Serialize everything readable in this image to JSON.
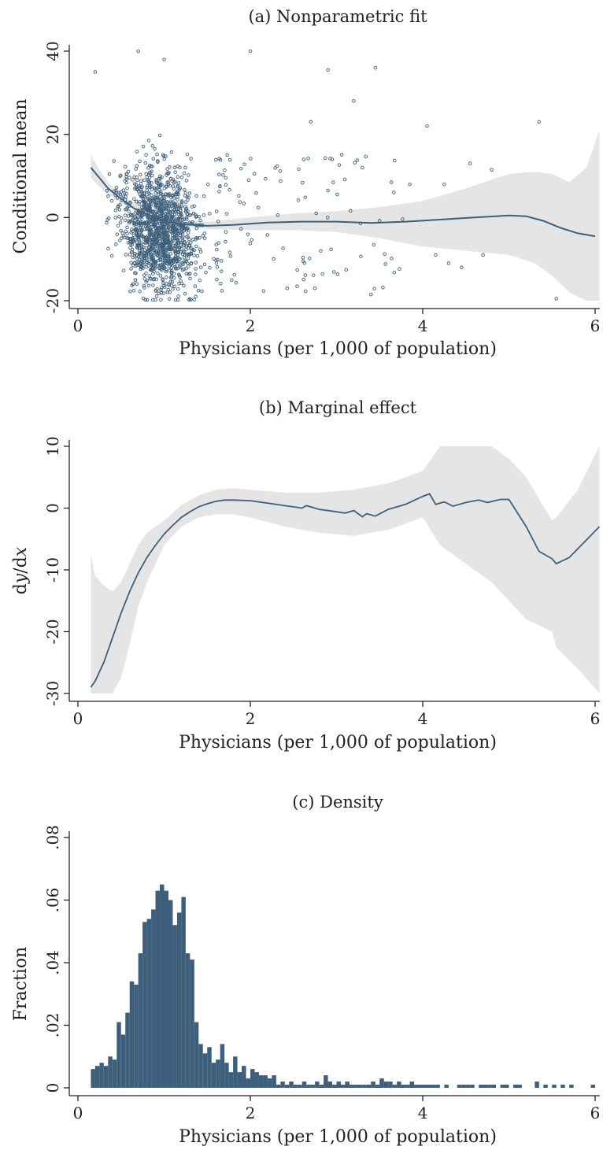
{
  "figure": {
    "panels": [
      {
        "title": "(a) Nonparametric fit",
        "ylabel": "Conditional mean",
        "xlabel": "Physicians (per 1,000 of population)"
      },
      {
        "title": "(b) Marginal effect",
        "ylabel": "dy/dx",
        "xlabel": "Physicians (per 1,000 of population)"
      },
      {
        "title": "(c) Density",
        "ylabel": "Fraction",
        "xlabel": "Physicians (per 1,000 of population)"
      }
    ]
  },
  "colors": {
    "series": "#3e5f7b",
    "band": "#e5e5e5",
    "axis": "#222222",
    "background": "#ffffff"
  },
  "chart_data": [
    {
      "type": "scatter",
      "title": "(a) Nonparametric fit",
      "xlabel": "Physicians (per 1,000 of population)",
      "ylabel": "Conditional mean",
      "xlim": [
        0,
        6
      ],
      "ylim": [
        -20,
        40
      ],
      "xticks": [
        0,
        2,
        4,
        6
      ],
      "yticks": [
        -20,
        0,
        20,
        40
      ],
      "xtick_labels": [
        "0",
        "2",
        "4",
        "6"
      ],
      "ytick_labels": [
        "-20",
        "0",
        "20",
        "40"
      ],
      "grid": false,
      "scatter_points": {
        "n": 1500,
        "note_x_range": [
          0.15,
          6.0
        ],
        "bulk_x_center": 0.95,
        "sample": [
          [
            0.2,
            35
          ],
          [
            0.7,
            40
          ],
          [
            1.0,
            38
          ],
          [
            2.0,
            40
          ],
          [
            2.9,
            35.5
          ],
          [
            3.45,
            36
          ],
          [
            3.2,
            28
          ],
          [
            4.05,
            22
          ],
          [
            5.35,
            23
          ],
          [
            2.7,
            23
          ],
          [
            4.55,
            13
          ],
          [
            4.8,
            11.5
          ],
          [
            5.55,
            -19.5
          ],
          [
            3.4,
            -18.5
          ],
          [
            2.75,
            -17
          ],
          [
            2.95,
            14
          ],
          [
            2.9,
            6.5
          ],
          [
            3.3,
            12
          ],
          [
            3.85,
            8
          ],
          [
            4.25,
            8
          ],
          [
            4.3,
            -11
          ],
          [
            4.7,
            -9
          ],
          [
            4.45,
            -12
          ],
          [
            4.15,
            -9
          ]
        ]
      },
      "fit_line": {
        "x": [
          0.15,
          0.25,
          0.35,
          0.5,
          0.65,
          0.8,
          1.0,
          1.2,
          1.5,
          1.8,
          2.2,
          2.6,
          3.0,
          3.4,
          3.8,
          4.2,
          4.6,
          5.0,
          5.2,
          5.4,
          5.6,
          5.8,
          6.0
        ],
        "y": [
          12.0,
          9.5,
          7.0,
          4.5,
          2.2,
          0.8,
          -0.8,
          -1.6,
          -2.0,
          -1.8,
          -1.2,
          -1.0,
          -1.0,
          -1.3,
          -1.0,
          -0.5,
          0.0,
          0.5,
          0.3,
          -0.8,
          -2.5,
          -3.8,
          -4.5
        ]
      },
      "confidence_band": {
        "x": [
          0.15,
          0.25,
          0.35,
          0.5,
          0.7,
          1.0,
          1.5,
          2.0,
          2.5,
          3.0,
          3.5,
          4.0,
          4.5,
          5.0,
          5.3,
          5.5,
          5.7,
          5.9,
          6.05
        ],
        "lower": [
          9.5,
          7.5,
          5.5,
          3.5,
          1.5,
          -1.5,
          -2.8,
          -3.0,
          -3.0,
          -3.5,
          -5.0,
          -7.0,
          -8.0,
          -9.0,
          -11.0,
          -14.0,
          -18.0,
          -20.0,
          -20.0
        ],
        "upper": [
          15.0,
          11.5,
          8.5,
          5.5,
          3.0,
          0.0,
          -1.0,
          0.0,
          1.0,
          1.5,
          2.5,
          4.0,
          7.0,
          10.5,
          11.0,
          10.5,
          8.5,
          12.0,
          21.0
        ]
      }
    },
    {
      "type": "line",
      "title": "(b) Marginal effect",
      "xlabel": "Physicians (per 1,000 of population)",
      "ylabel": "dy/dx",
      "xlim": [
        0,
        6
      ],
      "ylim": [
        -30,
        10
      ],
      "xticks": [
        0,
        2,
        4,
        6
      ],
      "yticks": [
        -30,
        -20,
        -10,
        0,
        10
      ],
      "xtick_labels": [
        "0",
        "2",
        "4",
        "6"
      ],
      "ytick_labels": [
        "-30",
        "-20",
        "-10",
        "0",
        "10"
      ],
      "grid": false,
      "series": [
        {
          "x": [
            0.15,
            0.2,
            0.3,
            0.4,
            0.5,
            0.6,
            0.7,
            0.8,
            0.9,
            1.0,
            1.1,
            1.2,
            1.3,
            1.4,
            1.5,
            1.6,
            1.7,
            1.8,
            2.0,
            2.2,
            2.4,
            2.6,
            2.65,
            2.8,
            3.0,
            3.1,
            3.2,
            3.3,
            3.35,
            3.45,
            3.6,
            3.8,
            4.0,
            4.08,
            4.15,
            4.25,
            4.35,
            4.5,
            4.65,
            4.75,
            4.9,
            5.0,
            5.2,
            5.35,
            5.5,
            5.55,
            5.7,
            6.05
          ],
          "y": [
            -29.0,
            -28.0,
            -25.0,
            -21.0,
            -17.0,
            -13.5,
            -10.5,
            -8.0,
            -6.0,
            -4.2,
            -2.8,
            -1.5,
            -0.6,
            0.2,
            0.7,
            1.1,
            1.3,
            1.3,
            1.2,
            0.8,
            0.4,
            0.0,
            0.4,
            -0.2,
            -0.6,
            -0.8,
            -0.4,
            -1.4,
            -0.9,
            -1.3,
            -0.2,
            0.6,
            1.9,
            2.3,
            0.6,
            1.0,
            0.3,
            0.9,
            1.3,
            0.9,
            1.4,
            1.4,
            -3.0,
            -7.0,
            -8.2,
            -9.0,
            -8.0,
            -3.0
          ]
        }
      ],
      "confidence_band": {
        "x": [
          0.15,
          0.2,
          0.3,
          0.4,
          0.5,
          0.6,
          0.7,
          0.8,
          1.0,
          1.2,
          1.4,
          1.6,
          1.8,
          2.0,
          2.4,
          2.8,
          3.2,
          3.6,
          4.0,
          4.2,
          4.4,
          4.6,
          4.8,
          5.0,
          5.2,
          5.5,
          5.55,
          5.8,
          6.05
        ],
        "lower": [
          -30.0,
          -30.0,
          -30.0,
          -30.0,
          -27.5,
          -22.0,
          -16.0,
          -12.0,
          -6.0,
          -3.0,
          -1.5,
          -1.0,
          -1.0,
          -1.5,
          -3.0,
          -4.0,
          -4.5,
          -3.5,
          -1.5,
          -6.0,
          -8.0,
          -10.0,
          -12.0,
          -15.0,
          -18.0,
          -20.0,
          -22.5,
          -26.0,
          -30.0
        ],
        "upper": [
          -7.5,
          -11.0,
          -12.5,
          -13.5,
          -12.0,
          -9.0,
          -6.0,
          -4.0,
          -2.0,
          0.5,
          2.0,
          3.0,
          3.2,
          3.0,
          2.5,
          2.5,
          3.0,
          4.0,
          6.0,
          10.0,
          10.0,
          10.0,
          10.0,
          8.0,
          5.0,
          -2.0,
          -1.5,
          3.0,
          10.0
        ]
      }
    },
    {
      "type": "bar",
      "title": "(c) Density",
      "xlabel": "Physicians (per 1,000 of population)",
      "ylabel": "Fraction",
      "xlim": [
        0,
        6
      ],
      "ylim": [
        0,
        0.08
      ],
      "xticks": [
        0,
        2,
        4,
        6
      ],
      "yticks": [
        0,
        0.02,
        0.04,
        0.06,
        0.08
      ],
      "xtick_labels": [
        "0",
        "2",
        "4",
        "6"
      ],
      "ytick_labels": [
        "0",
        ".02",
        ".04",
        ".06",
        ".08"
      ],
      "grid": false,
      "bin_start": 0.15,
      "bin_width": 0.05,
      "values": [
        0.006,
        0.007,
        0.008,
        0.007,
        0.01,
        0.009,
        0.021,
        0.017,
        0.024,
        0.034,
        0.033,
        0.043,
        0.053,
        0.054,
        0.057,
        0.063,
        0.065,
        0.063,
        0.06,
        0.052,
        0.056,
        0.061,
        0.043,
        0.041,
        0.021,
        0.014,
        0.011,
        0.013,
        0.008,
        0.009,
        0.014,
        0.008,
        0.005,
        0.01,
        0.005,
        0.007,
        0.003,
        0.006,
        0.005,
        0.004,
        0.004,
        0.003,
        0.004,
        0.001,
        0.002,
        0.001,
        0.002,
        0.001,
        0.001,
        0.002,
        0.001,
        0.001,
        0.002,
        0.001,
        0.004,
        0.002,
        0.001,
        0.002,
        0.001,
        0.002,
        0.001,
        0.001,
        0.001,
        0.001,
        0.001,
        0.002,
        0.001,
        0.003,
        0.002,
        0.002,
        0.001,
        0.002,
        0.001,
        0.001,
        0.002,
        0.001,
        0.001,
        0.001,
        0.001,
        0.001,
        0.001,
        0,
        0.001,
        0,
        0,
        0.001,
        0.001,
        0.001,
        0.001,
        0,
        0.001,
        0.001,
        0.001,
        0.001,
        0,
        0.001,
        0.001,
        0,
        0.001,
        0.001,
        0,
        0,
        0,
        0.002,
        0,
        0.001,
        0,
        0.001,
        0,
        0.001,
        0,
        0.001,
        0,
        0,
        0,
        0,
        0.001,
        0,
        0,
        0,
        0,
        0,
        0,
        0,
        0,
        0,
        0,
        0,
        0,
        0.001,
        0,
        0,
        0,
        0,
        0,
        0.002,
        0,
        0,
        0,
        0,
        0,
        0,
        0,
        0,
        0,
        0.001,
        0,
        0,
        0,
        0,
        0,
        0,
        0,
        0,
        0,
        0,
        0,
        0,
        0,
        0,
        0,
        0,
        0,
        0,
        0.001
      ]
    }
  ]
}
